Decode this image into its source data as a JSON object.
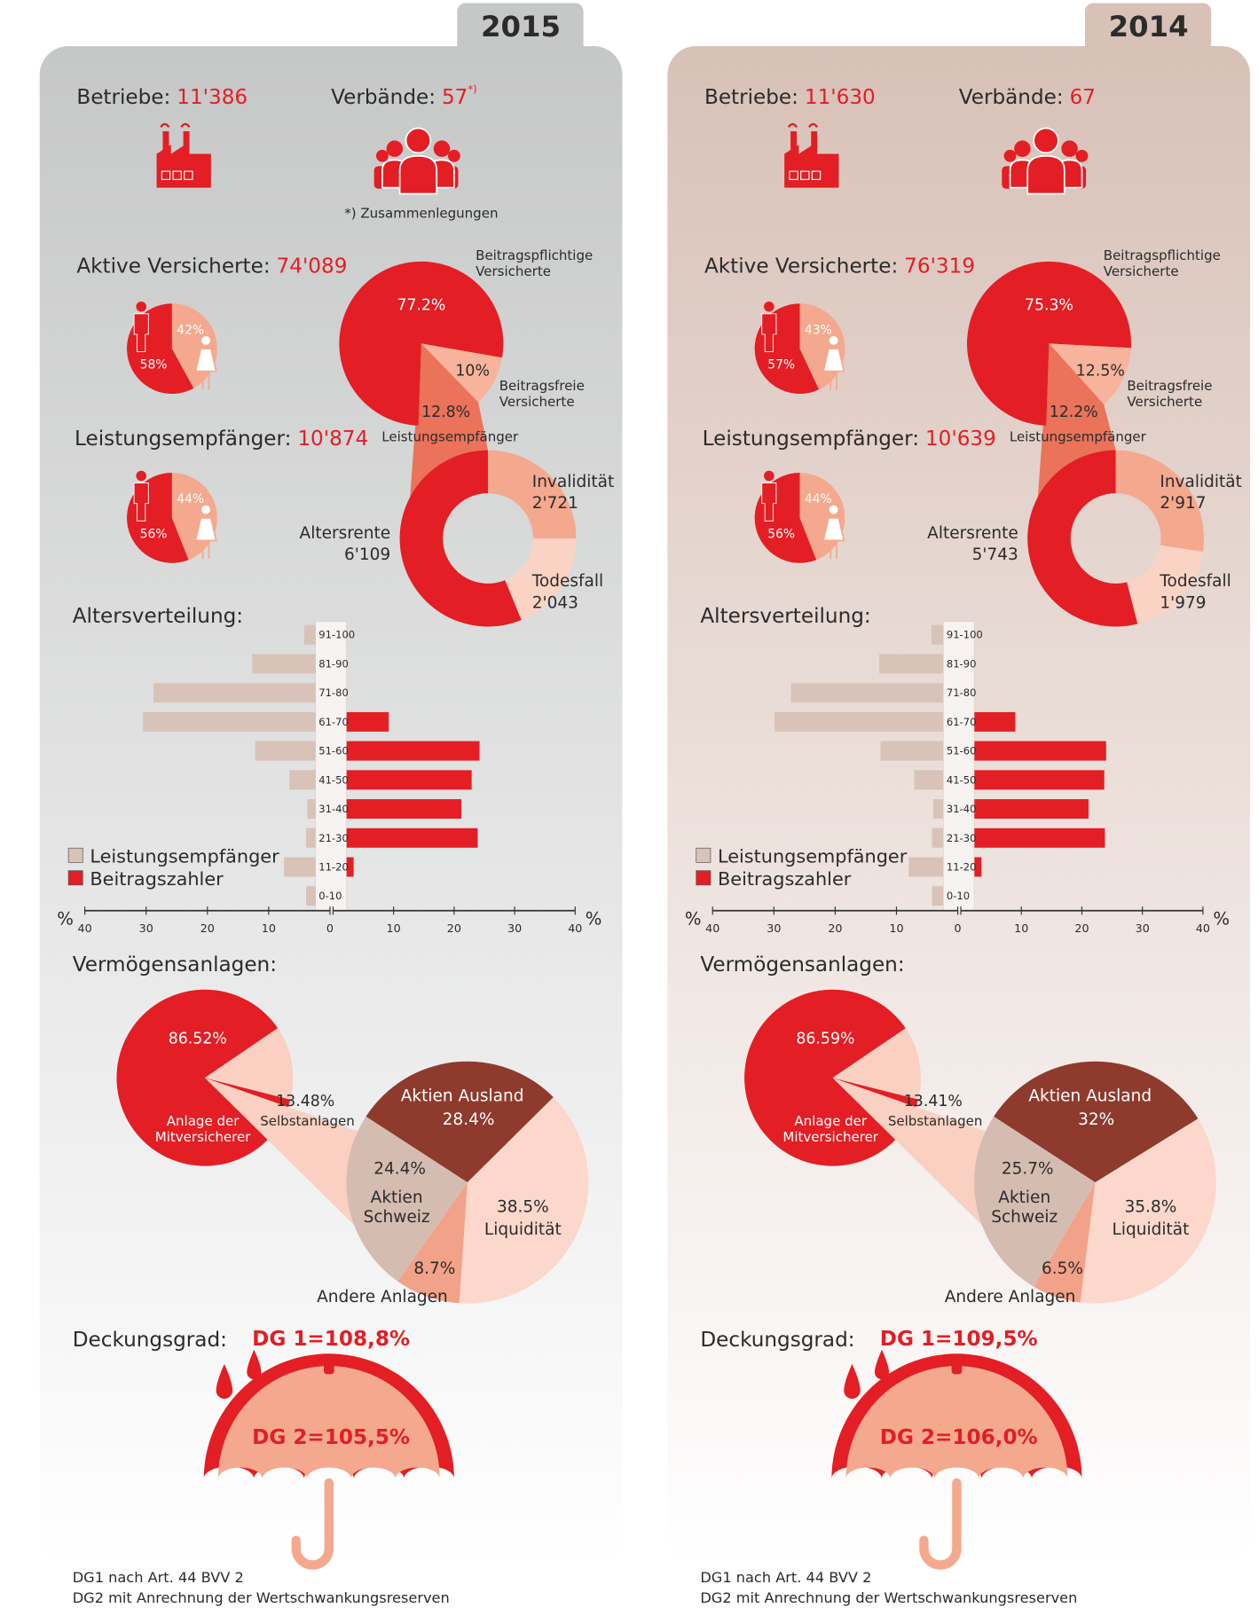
{
  "panels": [
    {
      "year": "2015",
      "betriebe": {
        "label": "Betriebe:",
        "value": "11'386"
      },
      "verbaende": {
        "label": "Verbände:",
        "value": "57",
        "note_mark": "*)",
        "note": "*) Zusammenlegungen"
      },
      "aktive_versicherte": {
        "label": "Aktive Versicherte:",
        "value": "74'089",
        "gender_chart": {
          "type": "pie",
          "values": [
            58,
            42
          ],
          "value_labels": [
            "58%",
            "42%"
          ],
          "colors": [
            "#e31e24",
            "#f4a98e"
          ]
        }
      },
      "versicherte_chart": {
        "type": "pie",
        "categories": [
          "Beitragspflichtige\nVersicherte",
          "Beitragsfreie\nVersicherte",
          "Leistungsempfänger"
        ],
        "values": [
          77.2,
          10,
          12.8
        ],
        "value_labels": [
          "77.2%",
          "10%",
          "12.8%"
        ],
        "colors": [
          "#e31e24",
          "#f7b39b",
          "#ea735a"
        ]
      },
      "leistungsempfaenger": {
        "label": "Leistungsempfänger:",
        "value": "10'874",
        "gender_chart": {
          "type": "pie",
          "values": [
            56,
            44
          ],
          "value_labels": [
            "56%",
            "44%"
          ],
          "colors": [
            "#e31e24",
            "#f4a98e"
          ]
        }
      },
      "renten_chart": {
        "type": "donut",
        "categories": [
          "Invalidität",
          "Todesfall",
          "Altersrente"
        ],
        "values": [
          2721,
          2043,
          6109
        ],
        "value_labels": [
          "2'721",
          "2'043",
          "6'109"
        ],
        "colors": [
          "#f4a98e",
          "#fbd3c5",
          "#e31e24"
        ]
      },
      "altersverteilung_chart": {
        "type": "bar",
        "orientation": "horizontal",
        "title": "Altersverteilung:",
        "categories": [
          "91-100",
          "81-90",
          "71-80",
          "61-70",
          "51-60",
          "41-50",
          "31-40",
          "21-30",
          "11-20",
          "0-10"
        ],
        "series": [
          {
            "name": "Leistungsempfänger",
            "color": "#d9c2b8",
            "values": [
              4.2,
              12.7,
              28.8,
              30.5,
              12.2,
              6.6,
              3.7,
              3.9,
              7.5,
              3.9
            ]
          },
          {
            "name": "Beitragszahler",
            "color": "#e31e24",
            "values": [
              0,
              0,
              0,
              9.2,
              24.2,
              22.9,
              21.2,
              23.9,
              3.4,
              0
            ]
          }
        ],
        "xlim": [
          0,
          40
        ],
        "xticks": [
          0,
          10,
          20,
          30,
          40
        ],
        "axis_unit": "%"
      },
      "vermoegen_chart": {
        "type": "pie",
        "title": "Vermögensanlagen:",
        "categories": [
          "Anlage der\nMitversicherer",
          "Selbstanlagen"
        ],
        "values": [
          86.52,
          13.48
        ],
        "value_labels": [
          "86.52%",
          "13.48%"
        ],
        "colors": [
          "#e31e24",
          "#f9d0c1"
        ],
        "breakdown": {
          "type": "pie",
          "categories": [
            "Aktien Ausland",
            "Liquidität",
            "Andere Anlagen",
            "Aktien\nSchweiz"
          ],
          "values": [
            28.4,
            38.5,
            8.7,
            24.4
          ],
          "value_labels": [
            "28.4%",
            "38.5%",
            "8.7%",
            "24.4%"
          ],
          "colors": [
            "#8e3a2d",
            "#fbd8cb",
            "#f2a288",
            "#d5bcb0"
          ]
        }
      },
      "deckungsgrad": {
        "label": "Deckungsgrad:",
        "dg1": "DG 1=108,8%",
        "dg2": "DG 2=105,5%"
      },
      "footnotes": [
        "DG1 nach Art. 44 BVV 2",
        "DG2 mit Anrechnung der Wertschwankungsreserven"
      ]
    },
    {
      "year": "2014",
      "betriebe": {
        "label": "Betriebe:",
        "value": "11'630"
      },
      "verbaende": {
        "label": "Verbände:",
        "value": "67"
      },
      "aktive_versicherte": {
        "label": "Aktive Versicherte:",
        "value": "76'319",
        "gender_chart": {
          "type": "pie",
          "values": [
            57,
            43
          ],
          "value_labels": [
            "57%",
            "43%"
          ],
          "colors": [
            "#e31e24",
            "#f4a98e"
          ]
        }
      },
      "versicherte_chart": {
        "type": "pie",
        "categories": [
          "Beitragspflichtige\nVersicherte",
          "Beitragsfreie\nVersicherte",
          "Leistungsempfänger"
        ],
        "values": [
          75.3,
          12.5,
          12.2
        ],
        "value_labels": [
          "75.3%",
          "12.5%",
          "12.2%"
        ],
        "colors": [
          "#e31e24",
          "#f7b39b",
          "#ea735a"
        ]
      },
      "leistungsempfaenger": {
        "label": "Leistungsempfänger:",
        "value": "10'639",
        "gender_chart": {
          "type": "pie",
          "values": [
            56,
            44
          ],
          "value_labels": [
            "56%",
            "44%"
          ],
          "colors": [
            "#e31e24",
            "#f4a98e"
          ]
        }
      },
      "renten_chart": {
        "type": "donut",
        "categories": [
          "Invalidität",
          "Todesfall",
          "Altersrente"
        ],
        "values": [
          2917,
          1979,
          5743
        ],
        "value_labels": [
          "2'917",
          "1'979",
          "5'743"
        ],
        "colors": [
          "#f4a98e",
          "#fbd3c5",
          "#e31e24"
        ]
      },
      "altersverteilung_chart": {
        "type": "bar",
        "orientation": "horizontal",
        "title": "Altersverteilung:",
        "categories": [
          "91-100",
          "81-90",
          "71-80",
          "61-70",
          "51-60",
          "41-50",
          "31-40",
          "21-30",
          "11-20",
          "0-10"
        ],
        "series": [
          {
            "name": "Leistungsempfänger",
            "color": "#d9c2b8",
            "values": [
              4.3,
              12.8,
              27.2,
              29.9,
              12.6,
              7.1,
              4.0,
              4.2,
              8.0,
              4.2
            ]
          },
          {
            "name": "Beitragszahler",
            "color": "#e31e24",
            "values": [
              0,
              0,
              0,
              9.0,
              24.0,
              23.7,
              21.1,
              23.8,
              3.4,
              0
            ]
          }
        ],
        "xlim": [
          0,
          40
        ],
        "xticks": [
          0,
          10,
          20,
          30,
          40
        ],
        "axis_unit": "%"
      },
      "vermoegen_chart": {
        "type": "pie",
        "title": "Vermögensanlagen:",
        "categories": [
          "Anlage der\nMitversicherer",
          "Selbstanlagen"
        ],
        "values": [
          86.59,
          13.41
        ],
        "value_labels": [
          "86.59%",
          "13.41%"
        ],
        "colors": [
          "#e31e24",
          "#f9d0c1"
        ],
        "breakdown": {
          "type": "pie",
          "categories": [
            "Aktien Ausland",
            "Liquidität",
            "Andere Anlagen",
            "Aktien\nSchweiz"
          ],
          "values": [
            32,
            35.8,
            6.5,
            25.7
          ],
          "value_labels": [
            "32%",
            "35.8%",
            "6.5%",
            "25.7%"
          ],
          "colors": [
            "#8e3a2d",
            "#fbd8cb",
            "#f2a288",
            "#d5bcb0"
          ]
        }
      },
      "deckungsgrad": {
        "label": "Deckungsgrad:",
        "dg1": "DG 1=109,5%",
        "dg2": "DG 2=106,0%"
      },
      "footnotes": [
        "DG1 nach Art. 44 BVV 2",
        "DG2 mit Anrechnung der Wertschwankungsreserven"
      ]
    }
  ]
}
